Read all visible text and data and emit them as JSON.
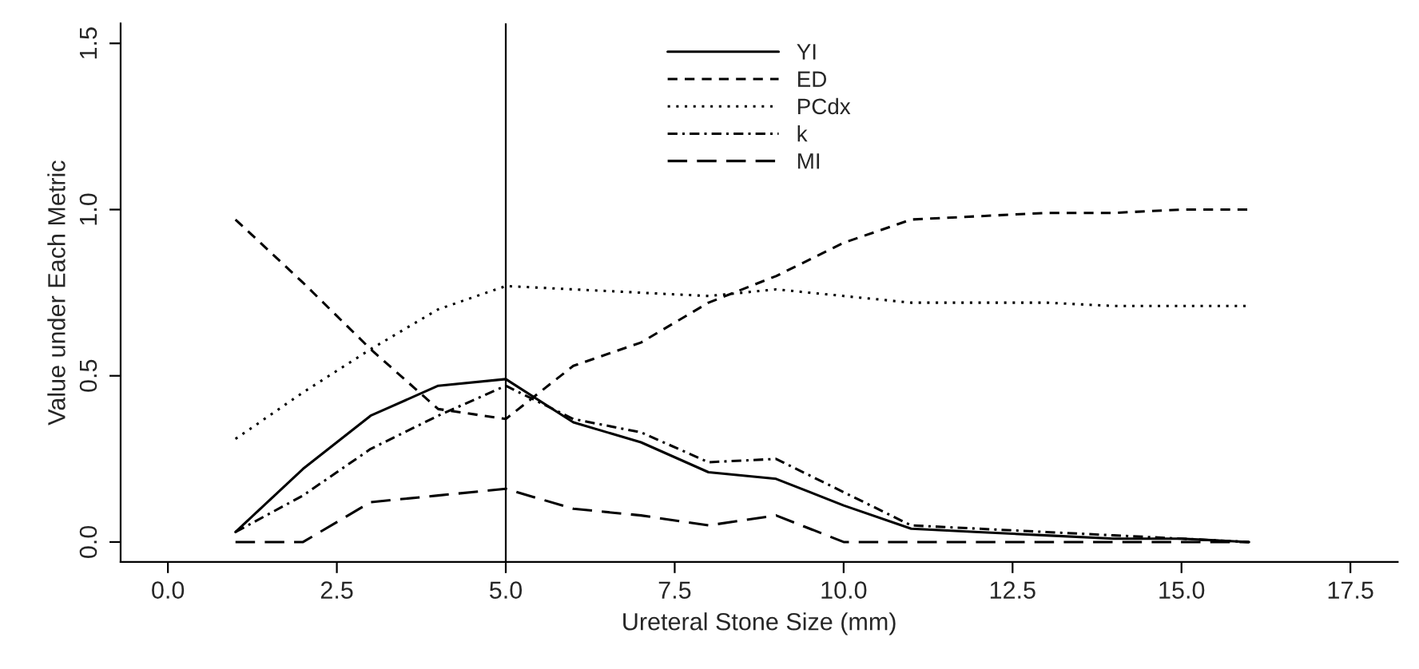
{
  "chart_data": {
    "type": "line",
    "xlabel": "Ureteral Stone Size (mm)",
    "ylabel": "Value under Each Metric",
    "x": [
      1,
      2,
      3,
      4,
      5,
      6,
      7,
      8,
      9,
      10,
      11,
      12,
      13,
      14,
      15,
      16
    ],
    "series": [
      {
        "name": "YI",
        "color": "#000000",
        "line_style": "solid",
        "values": [
          0.03,
          0.22,
          0.38,
          0.47,
          0.49,
          0.36,
          0.3,
          0.21,
          0.19,
          0.11,
          0.04,
          0.03,
          0.02,
          0.01,
          0.01,
          0
        ]
      },
      {
        "name": "ED",
        "color": "#000000",
        "line_style": "dashed",
        "values": [
          0.97,
          0.78,
          0.58,
          0.4,
          0.37,
          0.53,
          0.6,
          0.72,
          0.8,
          0.9,
          0.97,
          0.98,
          0.99,
          0.99,
          1.0,
          1.0
        ]
      },
      {
        "name": "PCdx",
        "color": "#000000",
        "line_style": "dotted",
        "values": [
          0.31,
          0.45,
          0.58,
          0.7,
          0.77,
          0.76,
          0.75,
          0.74,
          0.76,
          0.74,
          0.72,
          0.72,
          0.72,
          0.71,
          0.71,
          0.71
        ]
      },
      {
        "name": "k",
        "color": "#000000",
        "line_style": "dashdot",
        "values": [
          0.03,
          0.14,
          0.28,
          0.38,
          0.47,
          0.37,
          0.33,
          0.24,
          0.25,
          0.15,
          0.05,
          0.04,
          0.03,
          0.02,
          0.01,
          0
        ]
      },
      {
        "name": "MI",
        "color": "#000000",
        "line_style": "longdash",
        "values": [
          0,
          0,
          0.12,
          0.14,
          0.16,
          0.1,
          0.08,
          0.05,
          0.08,
          0,
          0,
          0,
          0,
          0,
          0,
          0
        ]
      }
    ],
    "xlim": [
      -0.7,
      18.2
    ],
    "ylim": [
      -0.06,
      1.56
    ],
    "xticks": [
      {
        "value": 0,
        "label": "0.0"
      },
      2.5,
      {
        "value": 5,
        "label": "5.0"
      },
      7.5,
      {
        "value": 10,
        "label": "10.0"
      },
      12.5,
      {
        "value": 15,
        "label": "15.0"
      },
      17.5
    ],
    "yticks": [
      {
        "value": 0,
        "label": "0.0"
      },
      0.5,
      {
        "value": 1,
        "label": "1.0"
      },
      1.5
    ],
    "ref_lines": [
      {
        "axis": "x",
        "value": 5,
        "color": "#000000",
        "line_style": "solid"
      }
    ],
    "legend": "top",
    "grid": false,
    "marker": "none"
  }
}
